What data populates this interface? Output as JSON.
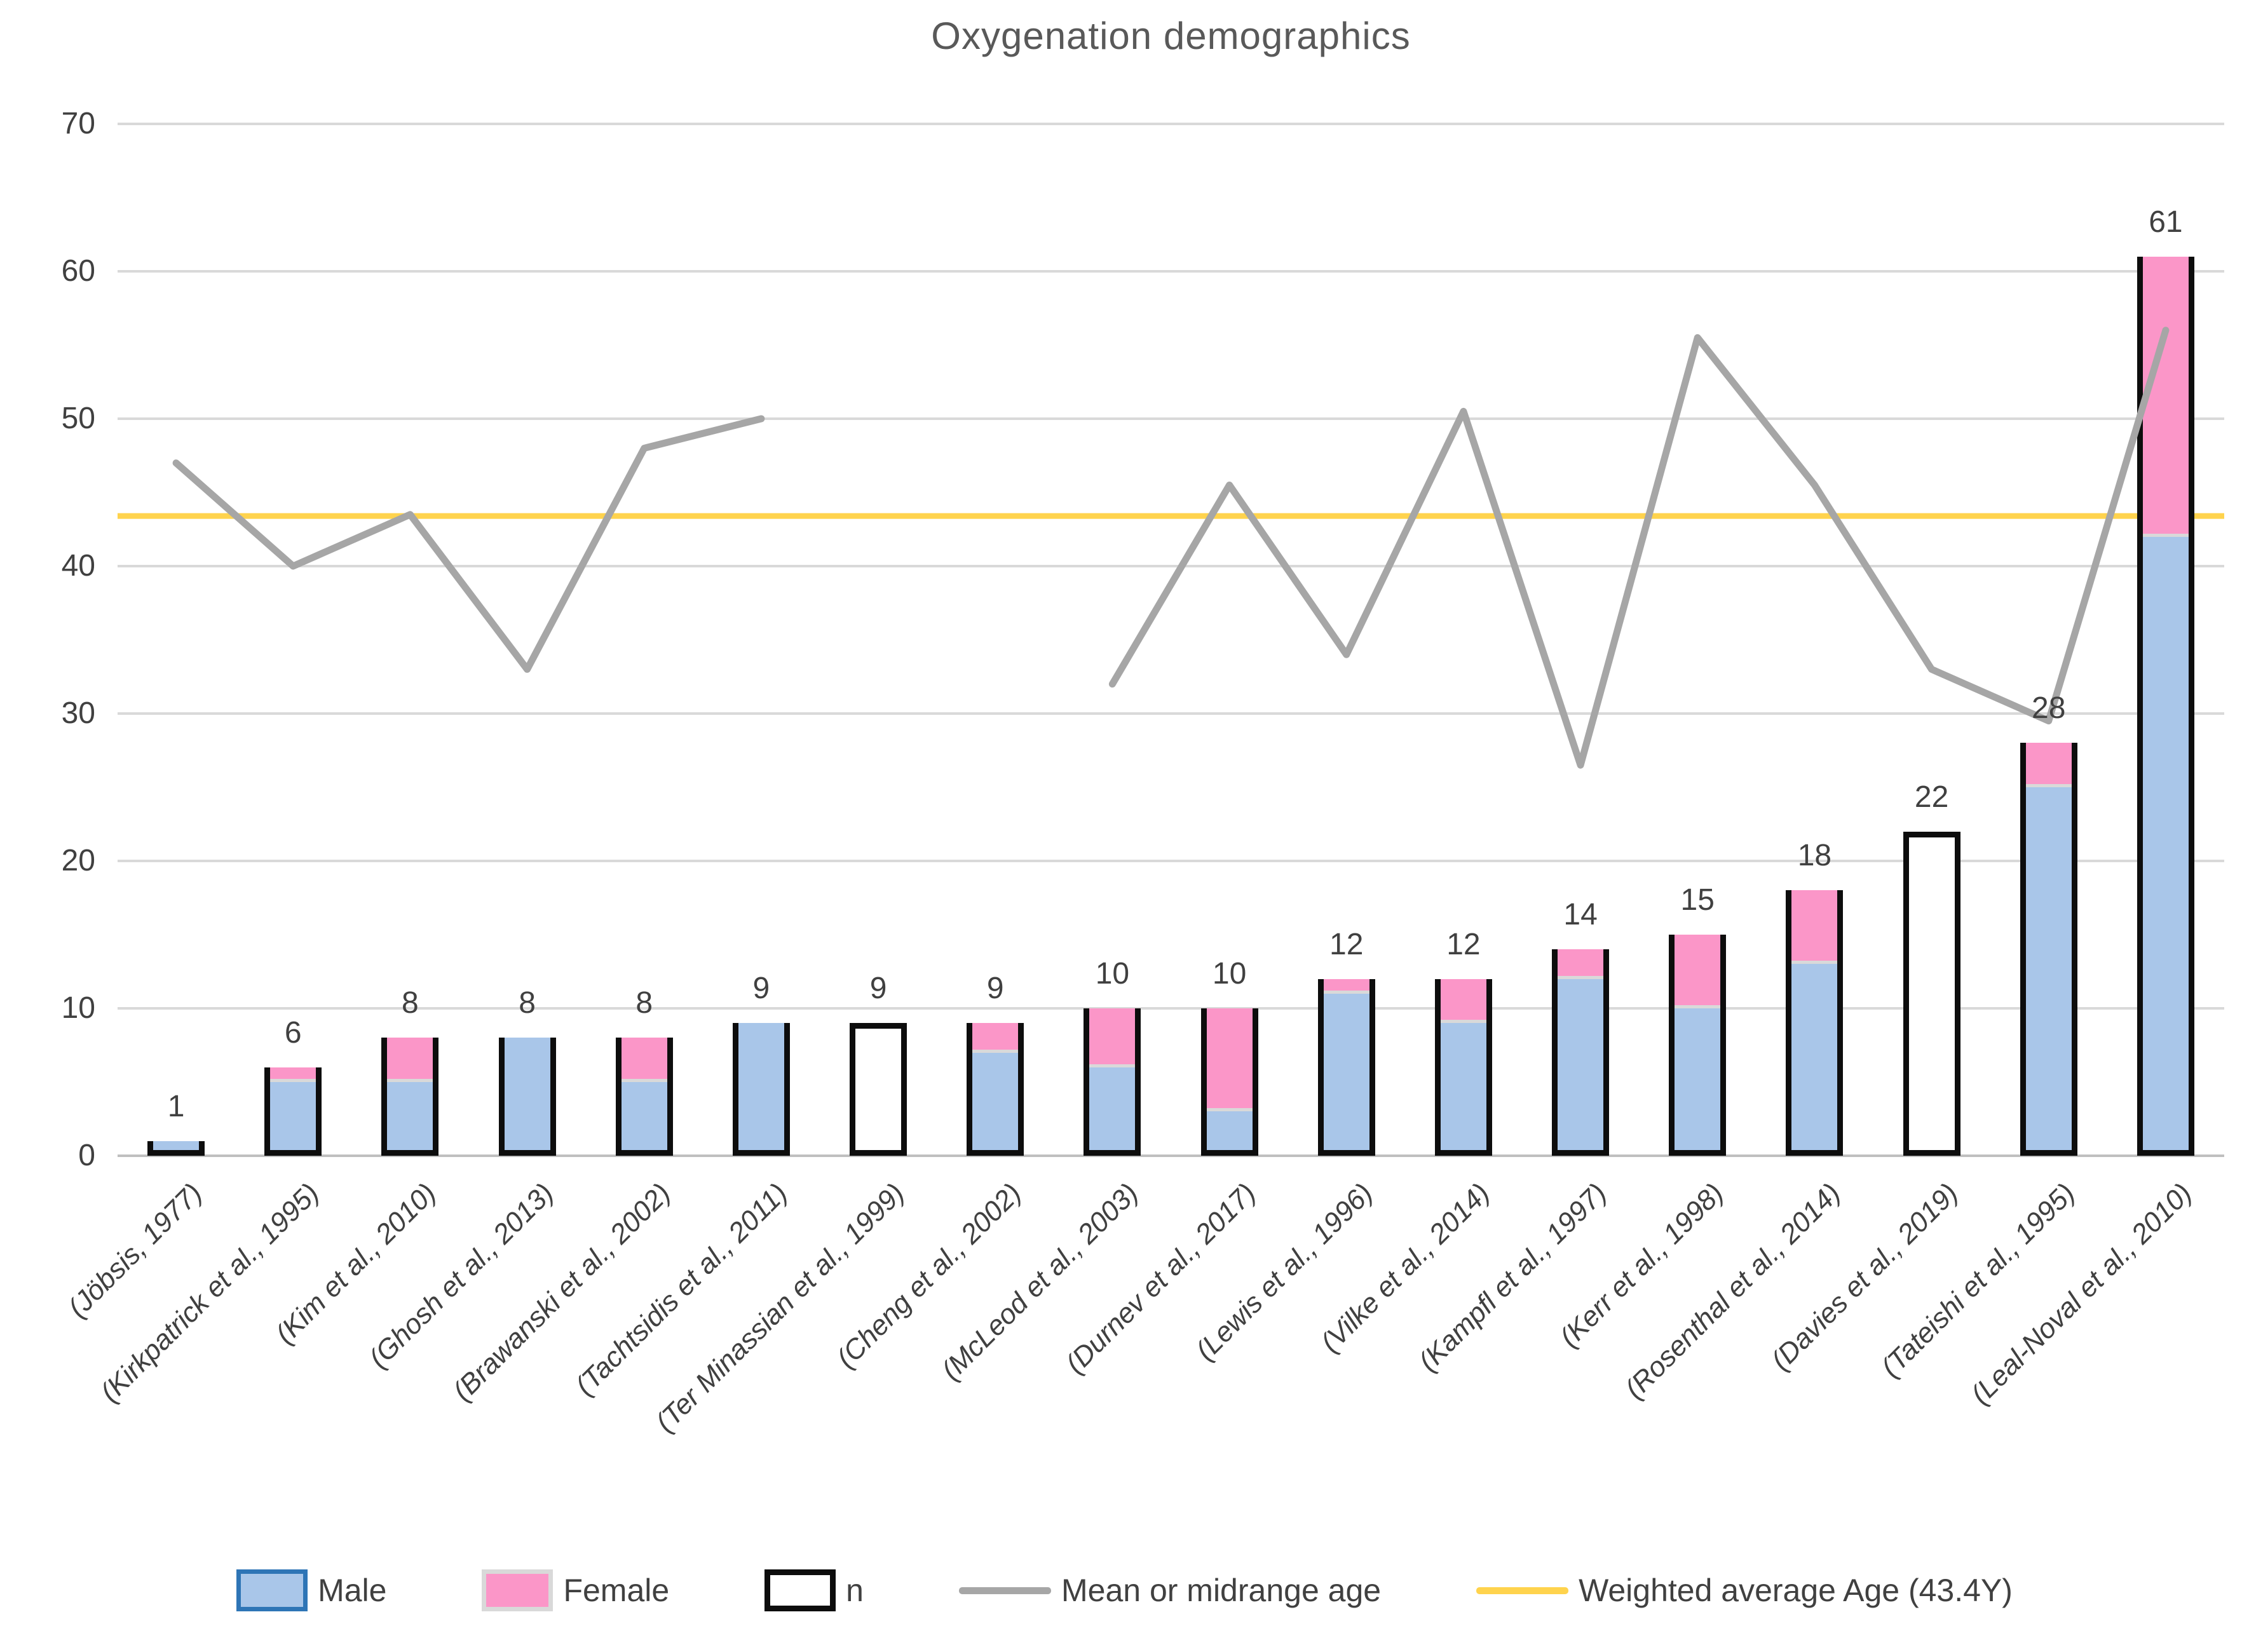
{
  "title": "Oxygenation demographics",
  "chart_data": {
    "type": "bar",
    "subtype": "stacked-bar-with-lines",
    "title": "Oxygenation demographics",
    "categories": [
      "(Jöbsis, 1977)",
      "(Kirkpatrick et al., 1995)",
      "(Kim et al., 2010)",
      "(Ghosh et al., 2013)",
      "(Brawanski et al., 2002)",
      "(Tachtsidis et al., 2011)",
      "(Ter Minassian et al., 1999)",
      "(Cheng et al., 2002)",
      "(McLeod et al., 2003)",
      "(Durnev et al., 2017)",
      "(Lewis et al., 1996)",
      "(Vilke et al., 2014)",
      "(Kampfl et al., 1997)",
      "(Kerr et al., 1998)",
      "(Rosenthal et al., 2014)",
      "(Davies et al., 2019)",
      "(Tateishi et al., 1995)",
      "(Leal-Noval et al., 2010)"
    ],
    "series": [
      {
        "name": "Male",
        "type": "bar",
        "color": "#a9c6e9",
        "border_color": "#2e75b6",
        "values": [
          1,
          5,
          5,
          8,
          5,
          9,
          null,
          7,
          6,
          3,
          11,
          9,
          12,
          10,
          13,
          null,
          25,
          42
        ]
      },
      {
        "name": "Female",
        "type": "bar",
        "color": "#fb96c8",
        "border_color": "#d9d9d9",
        "values": [
          0,
          1,
          3,
          0,
          3,
          0,
          null,
          2,
          4,
          7,
          1,
          3,
          2,
          5,
          5,
          null,
          3,
          19
        ]
      },
      {
        "name": "n",
        "type": "bar-outline",
        "color": "#ffffff",
        "border_color": "#0d0d0d",
        "values": [
          1,
          6,
          8,
          8,
          8,
          9,
          9,
          9,
          10,
          10,
          12,
          12,
          14,
          15,
          18,
          22,
          28,
          61
        ]
      },
      {
        "name": "Mean or midrange age",
        "type": "line",
        "color": "#a6a6a6",
        "values": [
          47,
          40,
          43.5,
          33,
          48,
          50,
          null,
          null,
          32,
          45.5,
          34,
          50.5,
          26.5,
          55.5,
          45.5,
          33,
          29.5,
          56
        ]
      },
      {
        "name": "Weighted average Age (43.4Y)",
        "type": "constant-line",
        "color": "#ffd34d",
        "value": 43.4
      }
    ],
    "bar_labels": [
      "1",
      "6",
      "8",
      "8",
      "8",
      "9",
      "9",
      "9",
      "10",
      "10",
      "12",
      "12",
      "14",
      "15",
      "18",
      "22",
      "28",
      "61"
    ],
    "ylabel": "",
    "xlabel": "",
    "ylim": [
      0,
      70
    ],
    "yticks": [
      0,
      10,
      20,
      30,
      40,
      50,
      60,
      70
    ],
    "grid": true,
    "gridline_color": "#d9d9d9",
    "axis_text_color": "#404040",
    "title_color": "#595959",
    "legend_position": "bottom"
  }
}
